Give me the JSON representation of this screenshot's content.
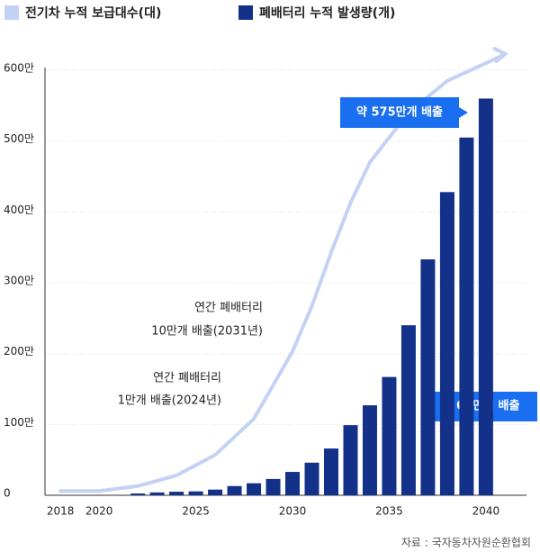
{
  "chart_data": {
    "type": "bar",
    "series": [
      {
        "name": "전기차 누적 보급대수(대)",
        "color": "#c3d2f4",
        "type": "line",
        "x": [
          2018,
          2020,
          2022,
          2024,
          2026,
          2028,
          2030,
          2031,
          2032,
          2033,
          2034,
          2036,
          2038,
          2040,
          2041
        ],
        "values": [
          6,
          6,
          13,
          28,
          57,
          108,
          203,
          267,
          343,
          413,
          470,
          540,
          585,
          610,
          623
        ]
      },
      {
        "name": "폐배터리 누적 발생량(개)",
        "color": "#14318a",
        "type": "bar",
        "x": [
          2022,
          2023,
          2024,
          2025,
          2026,
          2027,
          2028,
          2029,
          2030,
          2031,
          2032,
          2033,
          2034,
          2035,
          2036,
          2037,
          2038,
          2039,
          2040
        ],
        "values": [
          2.5,
          4,
          5,
          5.5,
          8,
          13,
          17,
          23,
          33,
          46,
          66,
          99,
          127,
          167,
          240,
          333,
          428,
          505,
          560
        ]
      }
    ],
    "xlim": [
      2017.2,
      2042.1
    ],
    "xticks": [
      2018,
      2020,
      2025,
      2030,
      2035,
      2040
    ],
    "ylim": [
      0,
      600
    ],
    "yticks": [
      0,
      {
        "value": 100,
        "label": "100만"
      },
      {
        "value": 200,
        "label": "200만"
      },
      {
        "value": 300,
        "label": "300만"
      },
      {
        "value": 400,
        "label": "400만"
      },
      {
        "value": 500,
        "label": "500만"
      },
      {
        "value": 600,
        "label": "600만"
      }
    ],
    "grid": true,
    "annotations": [
      "연간 폐배터리",
      "10만개 배출(2031년)",
      "연간 폐배터리",
      "1만개 배출(2024년)",
      "약 575만개 배출",
      "약 69만개 배출"
    ],
    "source": "자료 : 국자동차자원순환협회"
  }
}
